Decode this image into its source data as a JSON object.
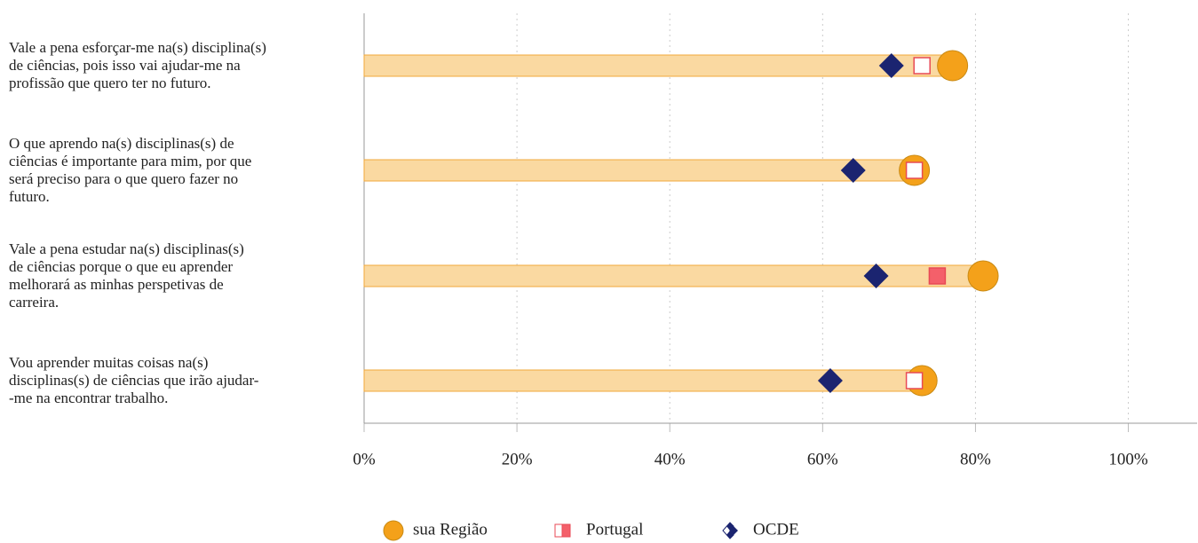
{
  "chart_data": {
    "type": "dot",
    "categories": [
      "Vale a pena esforçar-me na(s) disciplina(s)\nde ciências, pois isso vai ajudar-me na\nprofissão que quero ter no futuro.",
      "O que aprendo na(s) disciplinas(s) de\nciências é importante para mim, por que\nserá preciso para o que quero fazer no\nfuturo.",
      "Vale a pena estudar na(s) disciplinas(s)\nde ciências porque o que eu aprender\nmelhorará as minhas perspetivas de\ncarreira.",
      "Vou aprender muitas coisas na(s)\ndisciplinas(s) de ciências que irão ajudar-\n-me na encontrar trabalho."
    ],
    "series": [
      {
        "name": "sua Região",
        "color": "#f4a11a",
        "values": [
          77,
          72,
          81,
          73
        ]
      },
      {
        "name": "Portugal",
        "color": "#e84a55",
        "values": [
          73,
          72,
          75,
          72
        ],
        "point_colors": [
          "#ffffff",
          "#ffffff",
          "#f4606a",
          "#ffffff"
        ]
      },
      {
        "name": "OCDE",
        "color": "#1b2470",
        "values": [
          69,
          64,
          67,
          61
        ]
      }
    ],
    "xlim": [
      0,
      109
    ],
    "xticks": [
      {
        "value": 0,
        "label": "0%"
      },
      {
        "value": 20,
        "label": "20%"
      },
      {
        "value": 40,
        "label": "40%"
      },
      {
        "value": 60,
        "label": "60%"
      },
      {
        "value": 80,
        "label": "80%"
      },
      {
        "value": 100,
        "label": "100%"
      }
    ],
    "grid": true
  }
}
